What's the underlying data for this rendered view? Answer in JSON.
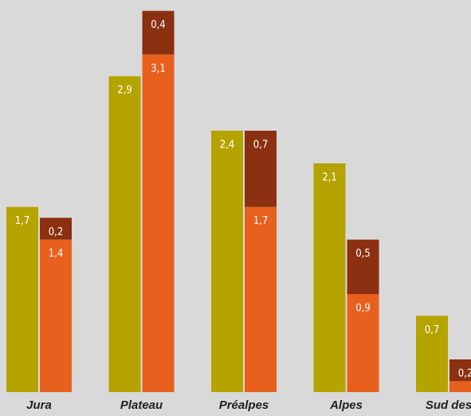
{
  "chart_data": {
    "type": "grouped-stacked-bar",
    "categories": [
      "Jura",
      "Plateau",
      "Préalpes",
      "Alpes",
      "Sud des"
    ],
    "series": [
      {
        "color": "#b5a300",
        "stack": 0,
        "values": [
          1.7,
          2.9,
          2.4,
          2.1,
          0.7
        ],
        "value_labels": [
          "1,7",
          "2,9",
          "2,4",
          "2,1",
          "0,7"
        ]
      },
      {
        "color": "#e8601e",
        "stack": 1,
        "values": [
          1.4,
          3.1,
          1.7,
          0.9,
          0.1
        ],
        "value_labels": [
          "1,4",
          "3,1",
          "1,7",
          "0,9",
          null
        ]
      },
      {
        "color": "#8b3010",
        "stack": 1,
        "values": [
          0.2,
          0.4,
          0.7,
          0.5,
          0.2
        ],
        "value_labels": [
          "0,2",
          "0,4",
          "0,7",
          "0,5",
          "0,2"
        ]
      }
    ],
    "ylim": [
      0,
      3.6
    ]
  }
}
